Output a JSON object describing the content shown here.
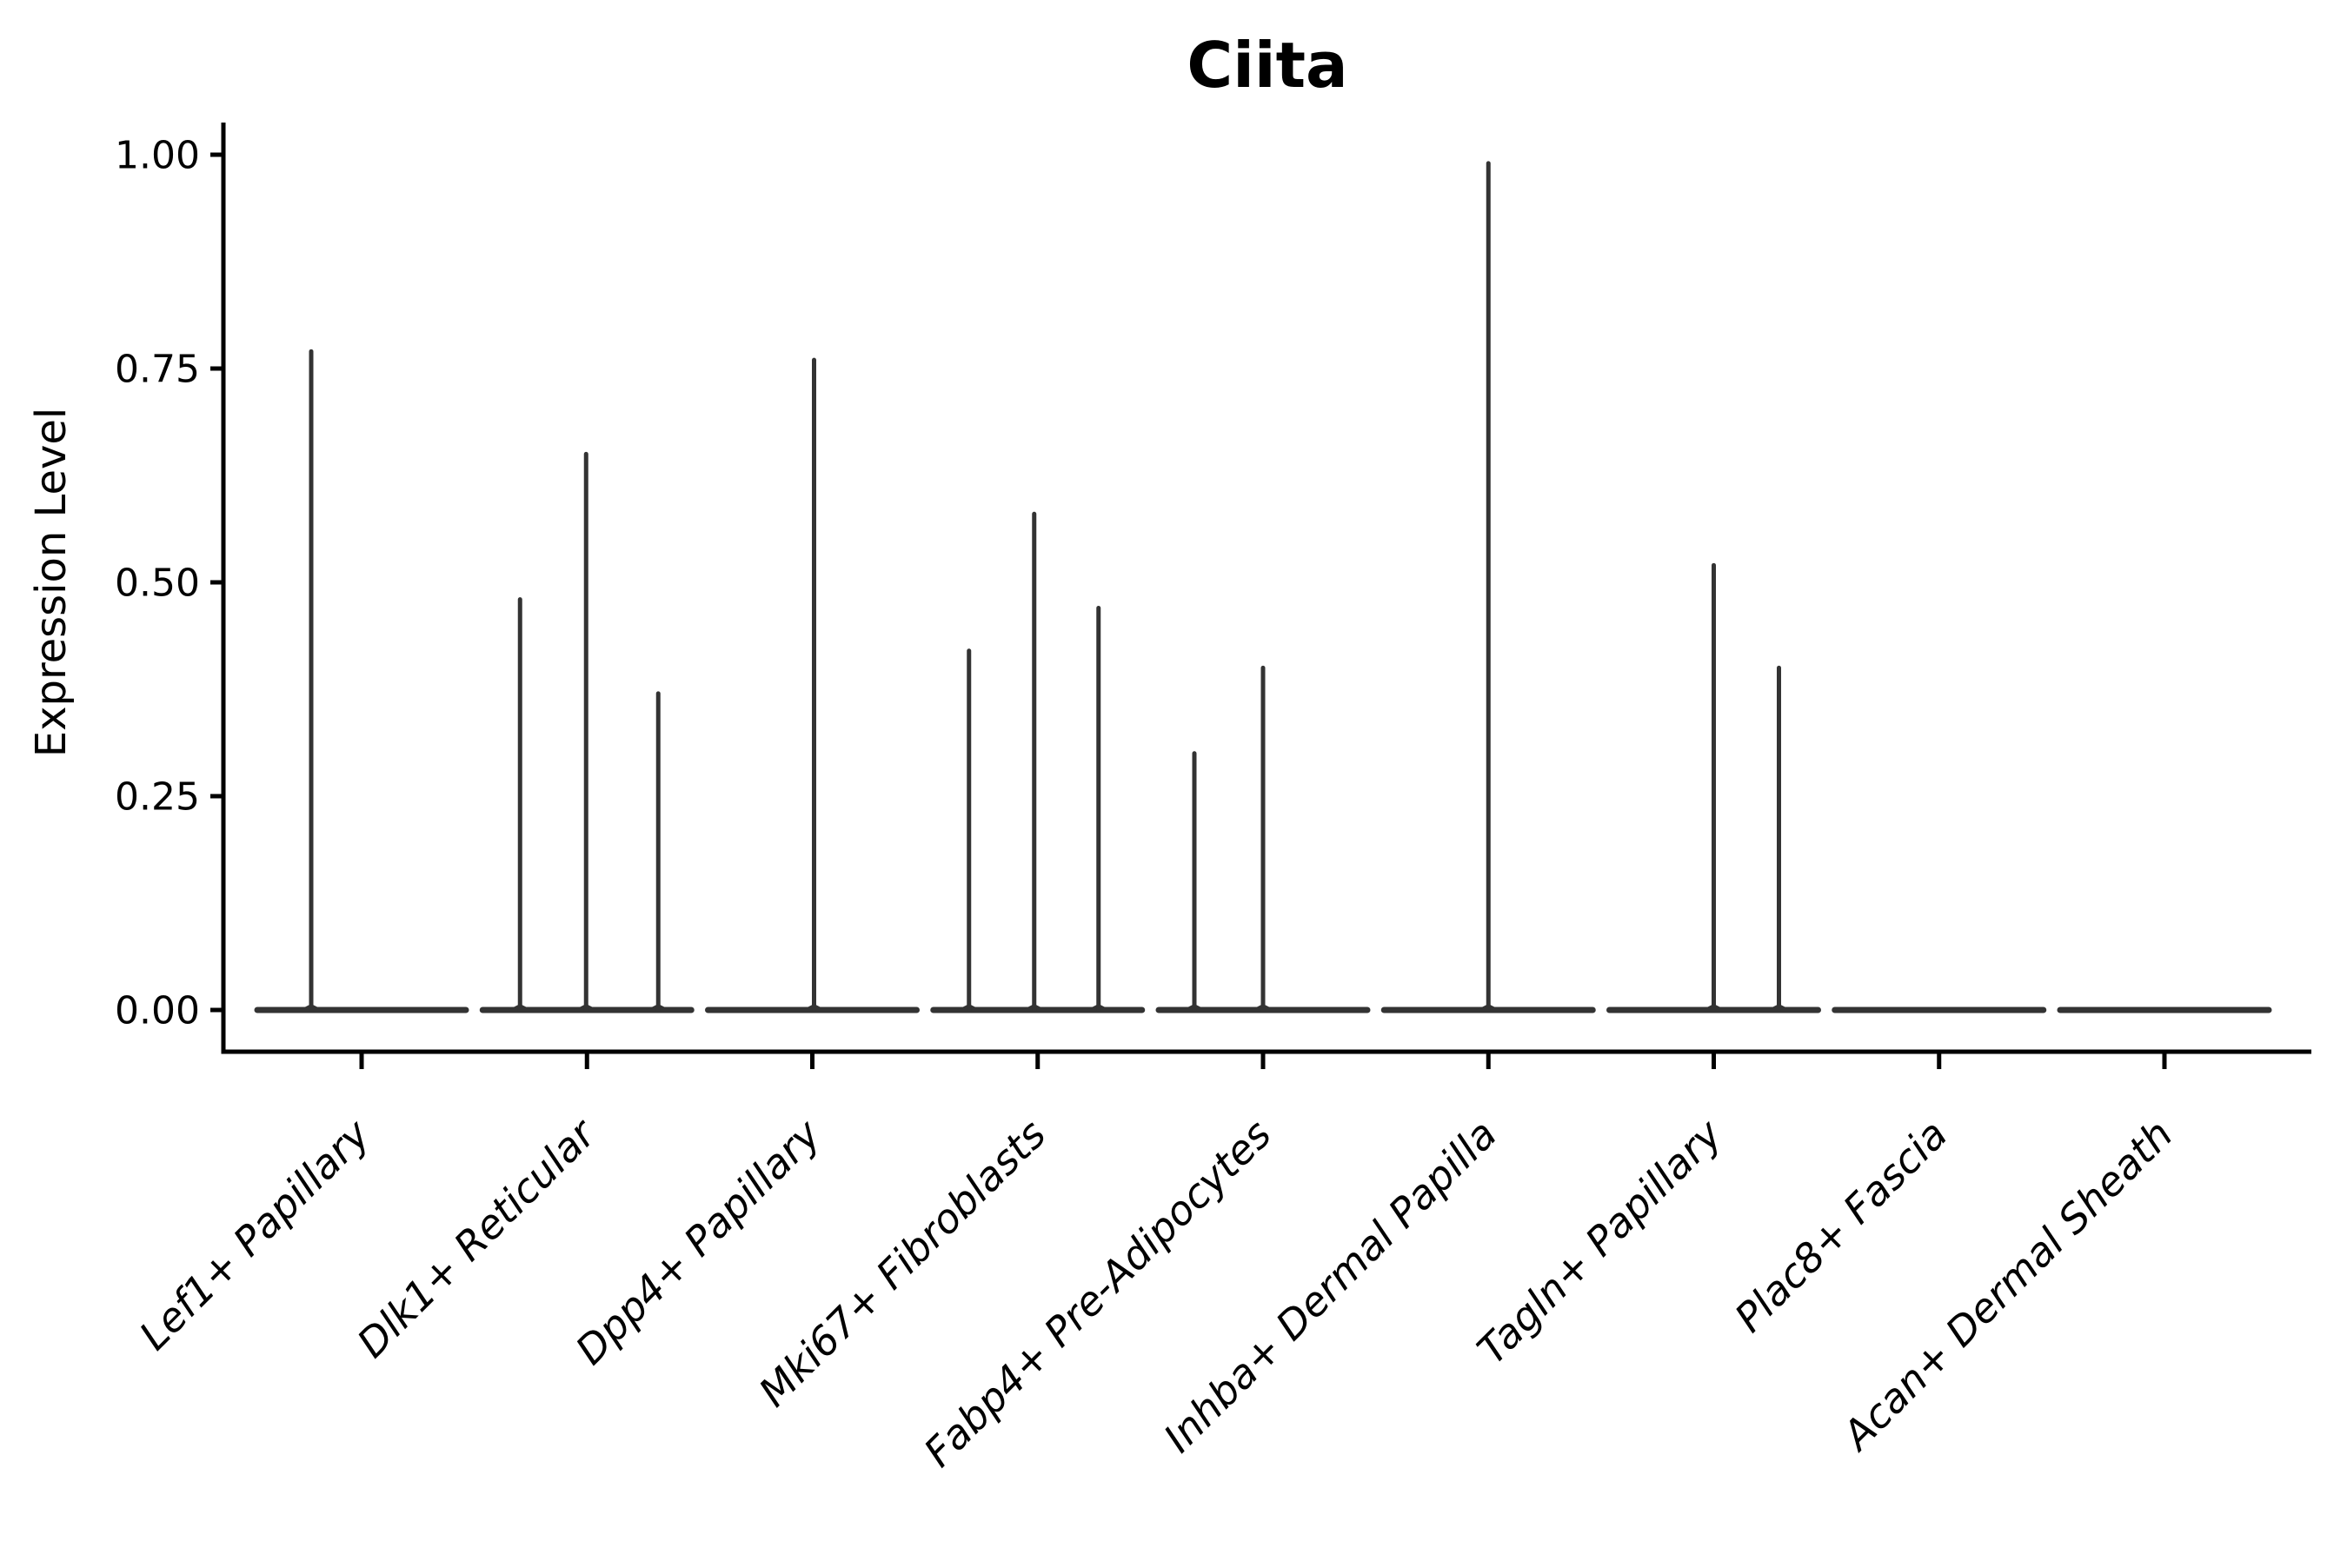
{
  "figure": {
    "title": "Ciita",
    "background_color": "#ffffff"
  },
  "chart_data": {
    "type": "violin",
    "title": "Ciita",
    "xlabel": "",
    "ylabel": "Expression Level",
    "ylim": [
      -0.05,
      1.04
    ],
    "grid": false,
    "legend": "none",
    "violin_stroke_color": "#333333",
    "spine_color": "#000000",
    "yticks": [
      {
        "value": 0.0,
        "label": "0.00"
      },
      {
        "value": 0.25,
        "label": "0.25"
      },
      {
        "value": 0.5,
        "label": "0.50"
      },
      {
        "value": 0.75,
        "label": "0.75"
      },
      {
        "value": 1.0,
        "label": "1.00"
      }
    ],
    "categories": [
      {
        "label": "Lef1+ Papillary",
        "spikes": [
          {
            "offset": -58,
            "value": 0.77
          }
        ]
      },
      {
        "label": "Dlk1+ Reticular",
        "spikes": [
          {
            "offset": -77,
            "value": 0.48
          },
          {
            "offset": -1,
            "value": 0.65
          },
          {
            "offset": 82,
            "value": 0.37
          }
        ]
      },
      {
        "label": "Dpp4+ Papillary",
        "spikes": [
          {
            "offset": 2,
            "value": 0.76
          }
        ]
      },
      {
        "label": "Mki67+ Fibroblasts",
        "spikes": [
          {
            "offset": -79,
            "value": 0.42
          },
          {
            "offset": -4,
            "value": 0.58
          },
          {
            "offset": 70,
            "value": 0.47
          }
        ]
      },
      {
        "label": "Fabp4+ Pre-Adipocytes",
        "spikes": [
          {
            "offset": -79,
            "value": 0.3
          },
          {
            "offset": 0,
            "value": 0.4
          }
        ]
      },
      {
        "label": "Inhba+ Dermal Papilla",
        "spikes": [
          {
            "offset": 0,
            "value": 0.99
          }
        ]
      },
      {
        "label": "Tagln+ Papillary",
        "spikes": [
          {
            "offset": 0,
            "value": 0.52
          },
          {
            "offset": 75,
            "value": 0.4
          }
        ]
      },
      {
        "label": "Plac8+ Fascia",
        "spikes": []
      },
      {
        "label": "Acan+ Dermal Sheath",
        "spikes": []
      }
    ]
  }
}
